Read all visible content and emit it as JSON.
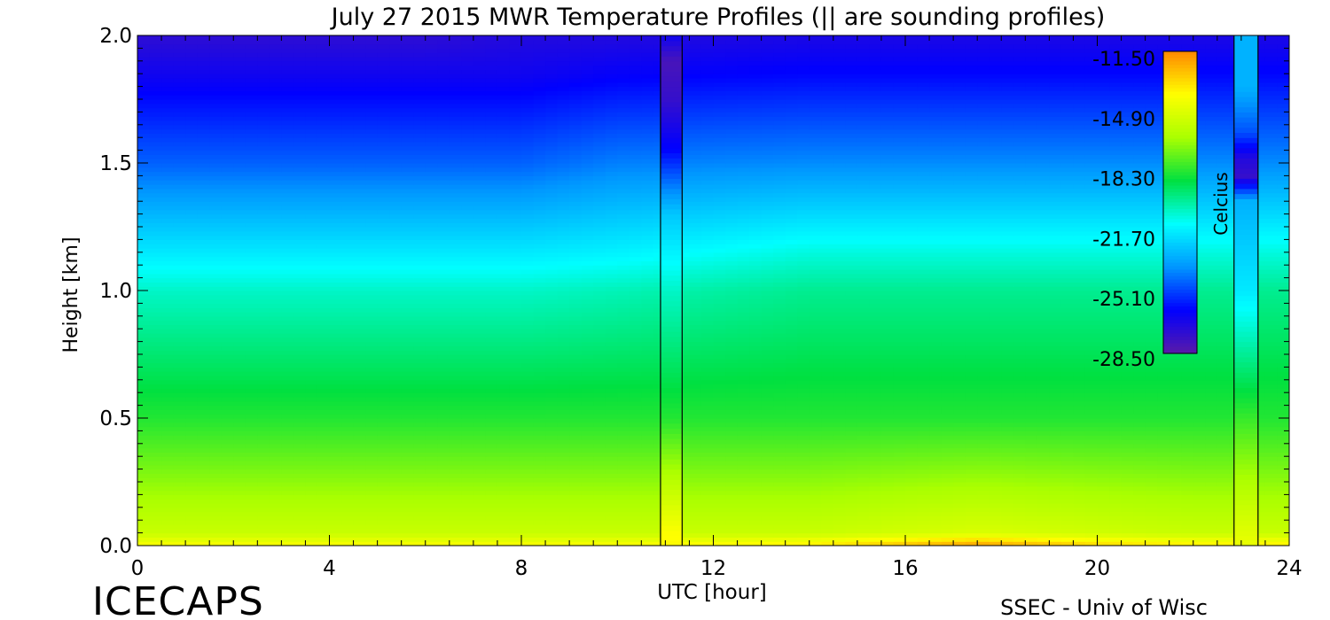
{
  "chart_data": {
    "type": "heatmap",
    "title": "July 27 2015 MWR Temperature Profiles (|| are sounding profiles)",
    "xlabel": "UTC [hour]",
    "ylabel": "Height [km]",
    "xlim": [
      0,
      24
    ],
    "ylim": [
      0,
      2.0
    ],
    "x_ticks": [
      "0",
      "4",
      "8",
      "12",
      "16",
      "20",
      "24"
    ],
    "y_ticks": [
      "0.0",
      "0.5",
      "1.0",
      "1.5",
      "2.0"
    ],
    "colorbar": {
      "label": "Celcius",
      "ticks": [
        "-11.50",
        "-14.90",
        "-18.30",
        "-21.70",
        "-25.10",
        "-28.50"
      ],
      "range": [
        -28.5,
        -11.5
      ],
      "colormap": [
        "#5a1aa8",
        "#0000ff",
        "#0096ff",
        "#00ffff",
        "#00e040",
        "#aaff00",
        "#ffff00",
        "#ff8800"
      ]
    },
    "x": [
      0,
      2,
      4,
      6,
      8,
      10,
      14,
      16,
      17.5,
      20,
      22
    ],
    "y": [
      0,
      0.05,
      0.5,
      1.0,
      1.15,
      1.5,
      1.85,
      2.0
    ],
    "z": [
      [
        -14.0,
        -14.0,
        -14.0,
        -14.0,
        -14.0,
        -14.0,
        -13.5,
        -12.5,
        -11.8,
        -13.0,
        -13.5
      ],
      [
        -15.5,
        -15.5,
        -15.5,
        -15.5,
        -15.5,
        -15.5,
        -15.5,
        -15.2,
        -15.0,
        -15.3,
        -15.5
      ],
      [
        -18.3,
        -18.3,
        -18.3,
        -18.3,
        -18.3,
        -18.3,
        -18.3,
        -18.3,
        -18.3,
        -18.3,
        -18.3
      ],
      [
        -20.5,
        -20.5,
        -20.5,
        -20.5,
        -20.5,
        -20.3,
        -19.8,
        -19.8,
        -19.8,
        -19.8,
        -19.8
      ],
      [
        -21.7,
        -21.7,
        -21.7,
        -21.7,
        -21.7,
        -21.5,
        -20.8,
        -20.8,
        -20.8,
        -20.8,
        -20.8
      ],
      [
        -24.5,
        -24.5,
        -24.5,
        -24.5,
        -24.5,
        -24.0,
        -23.8,
        -23.8,
        -23.8,
        -23.8,
        -23.8
      ],
      [
        -26.5,
        -26.5,
        -26.5,
        -26.5,
        -26.5,
        -26.2,
        -26.0,
        -26.0,
        -26.0,
        -26.0,
        -26.0
      ],
      [
        -27.3,
        -27.3,
        -27.3,
        -27.3,
        -27.0,
        -27.0,
        -26.8,
        -26.8,
        -26.8,
        -26.8,
        -26.8
      ]
    ],
    "soundings": [
      {
        "start": 10.9,
        "end": 11.35,
        "values": [
          {
            "height": 2.0,
            "value": -26.5
          },
          {
            "height": 1.9,
            "value": -28.0
          },
          {
            "height": 1.75,
            "value": -27.5
          },
          {
            "height": 1.55,
            "value": -26.0
          },
          {
            "height": 1.3,
            "value": -22.5
          },
          {
            "height": 1.0,
            "value": -20.5
          },
          {
            "height": 0.5,
            "value": -18.3
          },
          {
            "height": 0.05,
            "value": -14.0
          },
          {
            "height": 0.0,
            "value": -13.8
          }
        ]
      },
      {
        "start": 22.85,
        "end": 23.35,
        "values": [
          {
            "height": 2.0,
            "value": -23.0
          },
          {
            "height": 1.8,
            "value": -23.0
          },
          {
            "height": 1.62,
            "value": -24.8
          },
          {
            "height": 1.52,
            "value": -27.0
          },
          {
            "height": 1.45,
            "value": -27.5
          },
          {
            "height": 1.35,
            "value": -23.0
          },
          {
            "height": 1.0,
            "value": -21.7
          },
          {
            "height": 0.5,
            "value": -18.0
          },
          {
            "height": 0.05,
            "value": -14.8
          },
          {
            "height": 0.0,
            "value": -14.5
          }
        ]
      }
    ]
  },
  "footer": {
    "left": "ICECAPS",
    "right": "SSEC - Univ of Wisc"
  }
}
